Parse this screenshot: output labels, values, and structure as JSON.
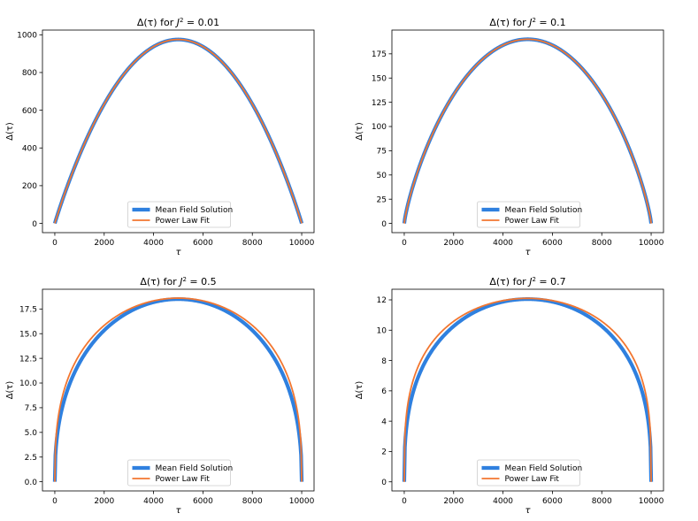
{
  "colors": {
    "mean_field": "#2f80df",
    "power_law": "#f27630",
    "frame": "#000000",
    "background": "#ffffff"
  },
  "chart_data": [
    {
      "type": "line",
      "title": "Δ(τ) for J² = 0.01",
      "title_parts": {
        "prefix": "Δ(τ) for ",
        "J": "J",
        "exp": "2",
        "suffix": " = 0.01"
      },
      "xlabel": "τ",
      "ylabel": "Δ(τ)",
      "xlim": [
        -500,
        10500
      ],
      "ylim": [
        -49,
        1025
      ],
      "xticks": [
        0,
        2000,
        4000,
        6000,
        8000,
        10000
      ],
      "xtick_labels": [
        "0",
        "2000",
        "4000",
        "6000",
        "8000",
        "10000"
      ],
      "yticks": [
        0,
        200,
        400,
        600,
        800,
        1000
      ],
      "ytick_labels": [
        "0",
        "200",
        "400",
        "600",
        "800",
        "1000"
      ],
      "legend": {
        "placement": "lower-center",
        "entries": [
          "Mean Field Solution",
          "Power Law Fit"
        ]
      },
      "series": [
        {
          "name": "Mean Field Solution",
          "x_range": [
            0,
            10000
          ],
          "peak": 975,
          "exponent": 0.97,
          "peak_scale": 1.0
        },
        {
          "name": "Power Law Fit",
          "x_range": [
            0,
            10000
          ],
          "peak": 975,
          "exponent": 0.97,
          "peak_scale": 1.0
        }
      ]
    },
    {
      "type": "line",
      "title": "Δ(τ) for J² = 0.1",
      "title_parts": {
        "prefix": "Δ(τ) for ",
        "J": "J",
        "exp": "2",
        "suffix": " = 0.1"
      },
      "xlabel": "τ",
      "ylabel": "Δ(τ)",
      "xlim": [
        -500,
        10500
      ],
      "ylim": [
        -9.5,
        199.5
      ],
      "xticks": [
        0,
        2000,
        4000,
        6000,
        8000,
        10000
      ],
      "xtick_labels": [
        "0",
        "2000",
        "4000",
        "6000",
        "8000",
        "10000"
      ],
      "yticks": [
        0,
        25,
        50,
        75,
        100,
        125,
        150,
        175
      ],
      "ytick_labels": [
        "0",
        "25",
        "50",
        "75",
        "100",
        "125",
        "150",
        "175"
      ],
      "legend": {
        "placement": "lower-center",
        "entries": [
          "Mean Field Solution",
          "Power Law Fit"
        ]
      },
      "series": [
        {
          "name": "Mean Field Solution",
          "x_range": [
            0,
            10000
          ],
          "peak": 190,
          "exponent": 0.8,
          "peak_scale": 1.0
        },
        {
          "name": "Power Law Fit",
          "x_range": [
            0,
            10000
          ],
          "peak": 190,
          "exponent": 0.8,
          "peak_scale": 1.0
        }
      ]
    },
    {
      "type": "line",
      "title": "Δ(τ) for J² = 0.5",
      "title_parts": {
        "prefix": "Δ(τ) for ",
        "J": "J",
        "exp": "2",
        "suffix": " = 0.5"
      },
      "xlabel": "τ",
      "ylabel": "Δ(τ)",
      "xlim": [
        -500,
        10500
      ],
      "ylim": [
        -0.93,
        19.5
      ],
      "xticks": [
        0,
        2000,
        4000,
        6000,
        8000,
        10000
      ],
      "xtick_labels": [
        "0",
        "2000",
        "4000",
        "6000",
        "8000",
        "10000"
      ],
      "yticks": [
        0,
        2.5,
        5,
        7.5,
        10,
        12.5,
        15,
        17.5
      ],
      "ytick_labels": [
        "0.0",
        "2.5",
        "5.0",
        "7.5",
        "10.0",
        "12.5",
        "15.0",
        "17.5"
      ],
      "legend": {
        "placement": "lower-center",
        "entries": [
          "Mean Field Solution",
          "Power Law Fit"
        ]
      },
      "series": [
        {
          "name": "Mean Field Solution",
          "x_range": [
            0,
            10000
          ],
          "peak": 18.5,
          "exponent": 0.42,
          "peak_scale": 1.0
        },
        {
          "name": "Power Law Fit",
          "x_range": [
            0,
            10000
          ],
          "peak": 18.6,
          "exponent": 0.36,
          "peak_scale": 1.0
        }
      ]
    },
    {
      "type": "line",
      "title": "Δ(τ) for J² = 0.7",
      "title_parts": {
        "prefix": "Δ(τ) for ",
        "J": "J",
        "exp": "2",
        "suffix": " = 0.7"
      },
      "xlabel": "τ",
      "ylabel": "Δ(τ)",
      "xlim": [
        -500,
        10500
      ],
      "ylim": [
        -0.6,
        12.7
      ],
      "xticks": [
        0,
        2000,
        4000,
        6000,
        8000,
        10000
      ],
      "xtick_labels": [
        "0",
        "2000",
        "4000",
        "6000",
        "8000",
        "10000"
      ],
      "yticks": [
        0,
        2,
        4,
        6,
        8,
        10,
        12
      ],
      "ytick_labels": [
        "0",
        "2",
        "4",
        "6",
        "8",
        "10",
        "12"
      ],
      "legend": {
        "placement": "lower-center",
        "entries": [
          "Mean Field Solution",
          "Power Law Fit"
        ]
      },
      "series": [
        {
          "name": "Mean Field Solution",
          "x_range": [
            0,
            10000
          ],
          "peak": 12.05,
          "exponent": 0.36,
          "peak_scale": 1.0
        },
        {
          "name": "Power Law Fit",
          "x_range": [
            0,
            10000
          ],
          "peak": 12.1,
          "exponent": 0.3,
          "peak_scale": 1.0
        }
      ]
    }
  ]
}
